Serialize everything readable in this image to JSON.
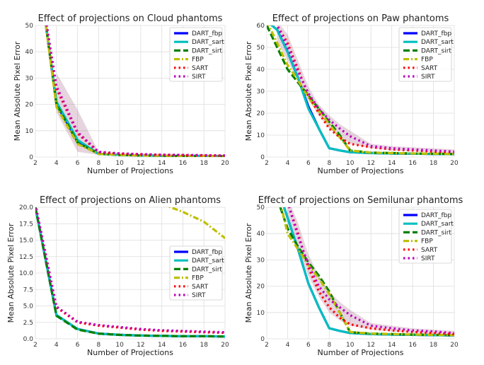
{
  "chart_data": [
    {
      "type": "line",
      "title": "Effect of projections on Cloud phantoms",
      "xlabel": "Number of Projections",
      "ylabel": "Mean Absolute Pixel Error",
      "xlim": [
        2,
        20
      ],
      "ylim": [
        0,
        50
      ],
      "xticks": [
        2,
        4,
        6,
        8,
        10,
        12,
        14,
        16,
        18,
        20
      ],
      "yticks": [
        0,
        10,
        20,
        30,
        40,
        50
      ],
      "ytick_labels": [
        "0",
        "10",
        "20",
        "30",
        "40",
        "50"
      ],
      "grid": true,
      "legend_position": "top-right",
      "series": [
        {
          "name": "DART_fbp",
          "color": "#0000ff",
          "dash": "solid",
          "x": [
            3,
            4,
            6,
            8,
            10,
            12,
            14,
            16,
            18,
            20
          ],
          "values": [
            50,
            20,
            6,
            1.2,
            0.8,
            0.6,
            0.5,
            0.4,
            0.4,
            0.3
          ]
        },
        {
          "name": "DART_sart",
          "color": "#00bfbf",
          "dash": "solid",
          "x": [
            3,
            4,
            6,
            8,
            10,
            12,
            14,
            16,
            18,
            20
          ],
          "values": [
            50,
            21,
            6.5,
            1.2,
            0.8,
            0.6,
            0.5,
            0.4,
            0.4,
            0.3
          ]
        },
        {
          "name": "DART_sirt",
          "color": "#008000",
          "dash": "dashed",
          "x": [
            3,
            4,
            6,
            8,
            10,
            12,
            14,
            16,
            18,
            20
          ],
          "values": [
            50,
            20,
            5.5,
            1.2,
            0.8,
            0.6,
            0.5,
            0.4,
            0.4,
            0.3
          ]
        },
        {
          "name": "FBP",
          "color": "#bfbf00",
          "dash": "dashdot",
          "x": [
            3,
            4,
            6,
            8,
            10,
            12,
            14,
            16,
            18,
            20
          ],
          "values": [
            50,
            19,
            5,
            1.2,
            0.8,
            0.6,
            0.5,
            0.4,
            0.4,
            0.3
          ]
        },
        {
          "name": "SART",
          "color": "#ff0000",
          "dash": "dotted",
          "x": [
            3,
            4,
            6,
            8,
            10,
            12,
            14,
            16,
            18,
            20
          ],
          "values": [
            52,
            26,
            9,
            1.8,
            1.3,
            1,
            0.8,
            0.7,
            0.6,
            0.5
          ]
        },
        {
          "name": "SIRT",
          "color": "#bf00bf",
          "dash": "dotted",
          "x": [
            3,
            4,
            6,
            8,
            10,
            12,
            14,
            16,
            18,
            20
          ],
          "values": [
            52,
            27,
            9.5,
            2,
            1.4,
            1.1,
            0.9,
            0.8,
            0.7,
            0.6
          ]
        }
      ],
      "band": {
        "color": "#8b3a6b",
        "x": [
          4,
          6,
          8
        ],
        "lower": [
          17,
          2,
          0.8
        ],
        "upper": [
          32,
          18,
          2
        ]
      }
    },
    {
      "type": "line",
      "title": "Effect of projections on Paw phantoms",
      "xlabel": "Number of Projections",
      "ylabel": "Mean Absolute Pixel Error",
      "xlim": [
        2,
        20
      ],
      "ylim": [
        0,
        60
      ],
      "xticks": [
        2,
        4,
        6,
        8,
        10,
        12,
        14,
        16,
        18,
        20
      ],
      "yticks": [
        0,
        10,
        20,
        30,
        40,
        50,
        60
      ],
      "ytick_labels": [
        "0",
        "10",
        "20",
        "30",
        "40",
        "50",
        "60"
      ],
      "grid": true,
      "legend_position": "top-right",
      "series": [
        {
          "name": "DART_fbp",
          "color": "#0000ff",
          "dash": "solid",
          "x": [
            2,
            3,
            4,
            5,
            6,
            7,
            8,
            9,
            10,
            12,
            14,
            16,
            18,
            20
          ],
          "values": [
            62,
            58,
            48,
            36,
            23,
            13,
            4,
            3,
            2.2,
            1.8,
            1.6,
            1.5,
            1.4,
            1.3
          ]
        },
        {
          "name": "DART_sart",
          "color": "#00bfbf",
          "dash": "solid",
          "x": [
            2,
            3,
            4,
            5,
            6,
            7,
            8,
            9,
            10,
            12,
            14,
            16,
            18,
            20
          ],
          "values": [
            62,
            58,
            48,
            36,
            22,
            13,
            4,
            3,
            2.2,
            1.8,
            1.6,
            1.5,
            1.4,
            1.3
          ]
        },
        {
          "name": "DART_sirt",
          "color": "#008000",
          "dash": "dashed",
          "x": [
            2,
            3,
            4,
            5,
            6,
            7,
            8,
            9,
            10,
            12,
            14,
            16,
            18,
            20
          ],
          "values": [
            60,
            50,
            40,
            34,
            28,
            22,
            16,
            10,
            3,
            2,
            1.8,
            1.6,
            1.5,
            1.4
          ]
        },
        {
          "name": "FBP",
          "color": "#bfbf00",
          "dash": "dashdot",
          "x": [
            2,
            3,
            4,
            5,
            6,
            7,
            8,
            9,
            10,
            12,
            14,
            16,
            18,
            20
          ],
          "values": [
            62,
            52,
            42,
            35,
            27,
            21,
            15,
            9,
            3,
            2,
            1.8,
            1.6,
            1.5,
            1.4
          ]
        },
        {
          "name": "SART",
          "color": "#ff0000",
          "dash": "dotted",
          "x": [
            2,
            3,
            4,
            5,
            6,
            7,
            8,
            9,
            10,
            12,
            14,
            16,
            18,
            20
          ],
          "values": [
            66,
            60,
            52,
            40,
            28,
            20,
            13,
            9,
            6,
            4.5,
            3.5,
            3,
            2.5,
            2.2
          ]
        },
        {
          "name": "SIRT",
          "color": "#bf00bf",
          "dash": "dotted",
          "x": [
            2,
            3,
            4,
            5,
            6,
            7,
            8,
            9,
            10,
            12,
            14,
            16,
            18,
            20
          ],
          "values": [
            66,
            60,
            50,
            39,
            29,
            22,
            17,
            13,
            9.5,
            5,
            4,
            3.5,
            3,
            2.5
          ]
        }
      ],
      "band": {
        "color": "#8b3a6b",
        "x": [
          3,
          4,
          5,
          6,
          7,
          8,
          9,
          10,
          12,
          14,
          16,
          18,
          20
        ],
        "lower": [
          53,
          44,
          35,
          26,
          19,
          13,
          9,
          6,
          4,
          3,
          2.5,
          2.2,
          1.8
        ],
        "upper": [
          62,
          56,
          44,
          32,
          24,
          19,
          15,
          12,
          6,
          5,
          4.5,
          4,
          3.5
        ]
      }
    },
    {
      "type": "line",
      "title": "Effect of projections on Alien phantoms",
      "xlabel": "Number of Projections",
      "ylabel": "Mean Absolute Pixel Error",
      "xlim": [
        2,
        20
      ],
      "ylim": [
        0,
        20
      ],
      "xticks": [
        2,
        4,
        6,
        8,
        10,
        12,
        14,
        16,
        18,
        20
      ],
      "yticks": [
        0,
        2.5,
        5,
        7.5,
        10,
        12.5,
        15,
        17.5,
        20
      ],
      "ytick_labels": [
        "0.0",
        "2.5",
        "5.0",
        "7.5",
        "10.0",
        "12.5",
        "15.0",
        "17.5",
        "20.0"
      ],
      "grid": true,
      "legend_position": "center-right",
      "series": [
        {
          "name": "DART_fbp",
          "color": "#0000ff",
          "dash": "solid",
          "x": [
            2,
            4,
            6,
            8,
            10,
            12,
            14,
            16,
            18,
            20
          ],
          "values": [
            20,
            3.6,
            1.5,
            0.8,
            0.6,
            0.5,
            0.45,
            0.4,
            0.4,
            0.35
          ]
        },
        {
          "name": "DART_sart",
          "color": "#00bfbf",
          "dash": "solid",
          "x": [
            2,
            4,
            6,
            8,
            10,
            12,
            14,
            16,
            18,
            20
          ],
          "values": [
            20,
            3.6,
            1.5,
            0.8,
            0.6,
            0.5,
            0.45,
            0.4,
            0.4,
            0.35
          ]
        },
        {
          "name": "DART_sirt",
          "color": "#008000",
          "dash": "dashed",
          "x": [
            2,
            4,
            6,
            8,
            10,
            12,
            14,
            16,
            18,
            20
          ],
          "values": [
            20,
            3.5,
            1.4,
            0.8,
            0.6,
            0.5,
            0.45,
            0.4,
            0.4,
            0.35
          ]
        },
        {
          "name": "FBP",
          "color": "#bfbf00",
          "dash": "dashdot",
          "x": [
            14,
            16,
            18,
            20
          ],
          "values": [
            20.5,
            19.3,
            17.8,
            15.3
          ]
        },
        {
          "name": "SART",
          "color": "#ff0000",
          "dash": "dotted",
          "x": [
            2,
            4,
            6,
            8,
            10,
            12,
            14,
            16,
            18,
            20
          ],
          "values": [
            20.5,
            4.8,
            2.5,
            2,
            1.7,
            1.4,
            1.2,
            1.1,
            1,
            0.9
          ]
        },
        {
          "name": "SIRT",
          "color": "#bf00bf",
          "dash": "dotted",
          "x": [
            2,
            4,
            6,
            8,
            10,
            12,
            14,
            16,
            18,
            20
          ],
          "values": [
            20.5,
            4.9,
            2.6,
            2.1,
            1.8,
            1.5,
            1.3,
            1.2,
            1.1,
            1
          ]
        }
      ],
      "band": null
    },
    {
      "type": "line",
      "title": "Effect of projections on Semilunar phantoms",
      "xlabel": "Number of Projections",
      "ylabel": "Mean Absolute Pixel Error",
      "xlim": [
        2,
        20
      ],
      "ylim": [
        0,
        50
      ],
      "xticks": [
        2,
        4,
        6,
        8,
        10,
        12,
        14,
        16,
        18,
        20
      ],
      "yticks": [
        0,
        10,
        20,
        30,
        40,
        50
      ],
      "ytick_labels": [
        "0",
        "10",
        "20",
        "30",
        "40",
        "50"
      ],
      "grid": true,
      "legend_position": "top-right",
      "series": [
        {
          "name": "DART_fbp",
          "color": "#0000ff",
          "dash": "solid",
          "x": [
            3.5,
            4,
            5,
            6,
            7,
            8,
            9,
            10,
            12,
            14,
            16,
            18,
            20
          ],
          "values": [
            52,
            46,
            34,
            21,
            12,
            4,
            3,
            2.2,
            1.8,
            1.6,
            1.5,
            1.4,
            1.3
          ]
        },
        {
          "name": "DART_sart",
          "color": "#00bfbf",
          "dash": "solid",
          "x": [
            3.5,
            4,
            5,
            6,
            7,
            8,
            9,
            10,
            12,
            14,
            16,
            18,
            20
          ],
          "values": [
            52,
            46,
            34,
            21,
            12,
            4,
            3,
            2.2,
            1.8,
            1.6,
            1.5,
            1.4,
            1.3
          ]
        },
        {
          "name": "DART_sirt",
          "color": "#008000",
          "dash": "dashed",
          "x": [
            3.3,
            4,
            5,
            6,
            7,
            8,
            9,
            10,
            12,
            14,
            16,
            18,
            20
          ],
          "values": [
            50,
            42,
            35,
            29,
            24,
            18,
            10,
            2.5,
            2,
            1.8,
            1.6,
            1.5,
            1.4
          ]
        },
        {
          "name": "FBP",
          "color": "#bfbf00",
          "dash": "dashdot",
          "x": [
            3.3,
            4,
            5,
            6,
            7,
            8,
            9,
            10,
            12,
            14,
            16,
            18,
            20
          ],
          "values": [
            52,
            40,
            34,
            28,
            23,
            17,
            10,
            2.6,
            2,
            1.8,
            1.6,
            1.5,
            1.4
          ]
        },
        {
          "name": "SART",
          "color": "#ff0000",
          "dash": "dotted",
          "x": [
            4,
            5,
            6,
            7,
            8,
            9,
            10,
            12,
            14,
            16,
            18,
            20
          ],
          "values": [
            52,
            40,
            27,
            18,
            12,
            8,
            5.5,
            4,
            3.2,
            2.6,
            2.2,
            1.8
          ]
        },
        {
          "name": "SIRT",
          "color": "#bf00bf",
          "dash": "dotted",
          "x": [
            4,
            5,
            6,
            7,
            8,
            9,
            10,
            12,
            14,
            16,
            18,
            20
          ],
          "values": [
            52,
            39,
            28,
            20,
            15,
            12,
            9,
            5,
            4,
            3.2,
            2.8,
            2.2
          ]
        }
      ],
      "band": {
        "color": "#8b3a6b",
        "x": [
          4,
          5,
          6,
          7,
          8,
          9,
          10,
          12,
          14,
          16,
          18,
          20
        ],
        "lower": [
          44,
          34,
          24,
          16,
          10,
          7,
          5,
          3.5,
          2.8,
          2.2,
          1.8,
          1.5
        ],
        "upper": [
          54,
          44,
          32,
          24,
          18,
          14,
          11,
          6,
          5,
          4,
          3.5,
          3
        ]
      }
    }
  ]
}
